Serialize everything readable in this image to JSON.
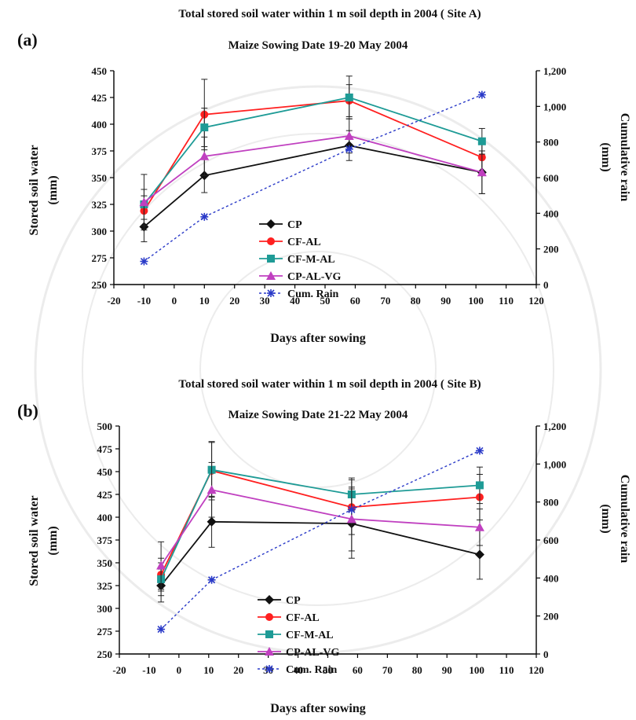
{
  "colors": {
    "CP": "#111111",
    "CF-AL": "#ff2020",
    "CF-M-AL": "#1e9b96",
    "CP-AL-VG": "#c040c0",
    "Cum. Rain": "#2a3ac8"
  },
  "chart_data": [
    {
      "type": "line",
      "panel_label": "(a)",
      "title": "Total stored soil water within 1  m soil depth in 2004  ( Site  A)",
      "subtitle": "Maize Sowing Date  19-20  May  2004",
      "xlabel": "Days after sowing",
      "ylabel_left": [
        "Stored soil water",
        "(mm)"
      ],
      "ylabel_right": [
        "Cumulative rain",
        "(mm)"
      ],
      "xlim": [
        -20,
        120
      ],
      "ylim_left": [
        250,
        450
      ],
      "ylim_right": [
        0,
        1200
      ],
      "x_ticks": [
        "-20",
        "-10",
        "0",
        "10",
        "20",
        "30",
        "40",
        "50",
        "60",
        "70",
        "80",
        "90",
        "100",
        "110",
        "120"
      ],
      "y_left_ticks": [
        "250",
        "275",
        "300",
        "325",
        "350",
        "375",
        "400",
        "425",
        "450"
      ],
      "y_right_ticks": [
        "0",
        "200",
        "400",
        "600",
        "800",
        "1,000",
        "1,200"
      ],
      "legend": [
        "CP",
        "CF-AL",
        "CF-M-AL",
        "CP-AL-VG",
        "Cum. Rain"
      ],
      "x": [
        -10,
        10,
        58,
        102
      ],
      "series": [
        {
          "name": "CP",
          "axis": "left",
          "marker": "diamond",
          "values": [
            304,
            352,
            380,
            355
          ],
          "errors": [
            14,
            16,
            14,
            20
          ]
        },
        {
          "name": "CF-AL",
          "axis": "left",
          "marker": "circle",
          "values": [
            319,
            409,
            422,
            369
          ],
          "errors": [
            14,
            33,
            15,
            15
          ]
        },
        {
          "name": "CF-M-AL",
          "axis": "left",
          "marker": "square",
          "values": [
            325,
            397,
            425,
            384
          ],
          "errors": [
            14,
            18,
            20,
            12
          ]
        },
        {
          "name": "CP-AL-VG",
          "axis": "left",
          "marker": "triangle",
          "values": [
            327,
            370,
            389,
            355
          ],
          "errors": [
            26,
            18,
            16,
            20
          ]
        },
        {
          "name": "Cum. Rain",
          "axis": "right",
          "marker": "asterisk",
          "dashed": true,
          "values": [
            130,
            380,
            760,
            1065
          ],
          "errors": [
            0,
            0,
            0,
            0
          ]
        }
      ]
    },
    {
      "type": "line",
      "panel_label": "(b)",
      "title": "Total stored soil water within 1  m soil depth in 2004  ( Site  B)",
      "subtitle": "Maize Sowing Date  21-22  May  2004",
      "xlabel": "Days after sowing",
      "ylabel_left": [
        "Stored soil water",
        "(mm)"
      ],
      "ylabel_right": [
        "Cumulative rain",
        "(mm)"
      ],
      "xlim": [
        -20,
        120
      ],
      "ylim_left": [
        250,
        500
      ],
      "ylim_right": [
        0,
        1200
      ],
      "x_ticks": [
        "-20",
        "-10",
        "0",
        "10",
        "20",
        "30",
        "40",
        "50",
        "60",
        "70",
        "80",
        "90",
        "100",
        "110",
        "120"
      ],
      "y_left_ticks": [
        "250",
        "275",
        "300",
        "325",
        "350",
        "375",
        "400",
        "425",
        "450",
        "475",
        "500"
      ],
      "y_right_ticks": [
        "0",
        "200",
        "400",
        "600",
        "800",
        "1,000",
        "1,200"
      ],
      "legend": [
        "CP",
        "CF-AL",
        "CF-M-AL",
        "CP-AL-VG",
        "Cum. Rain"
      ],
      "x": [
        -6,
        11,
        58,
        101
      ],
      "series": [
        {
          "name": "CP",
          "axis": "left",
          "marker": "diamond",
          "values": [
            325,
            395,
            393,
            359
          ],
          "errors": [
            18,
            28,
            38,
            27
          ]
        },
        {
          "name": "CF-AL",
          "axis": "left",
          "marker": "circle",
          "values": [
            337,
            451,
            411,
            422
          ],
          "errors": [
            18,
            32,
            30,
            25
          ]
        },
        {
          "name": "CF-M-AL",
          "axis": "left",
          "marker": "square",
          "values": [
            332,
            452,
            425,
            435
          ],
          "errors": [
            18,
            30,
            18,
            20
          ]
        },
        {
          "name": "CP-AL-VG",
          "axis": "left",
          "marker": "triangle",
          "values": [
            347,
            430,
            398,
            389
          ],
          "errors": [
            26,
            30,
            35,
            20
          ]
        },
        {
          "name": "Cum. Rain",
          "axis": "right",
          "marker": "asterisk",
          "dashed": true,
          "values": [
            130,
            390,
            760,
            1070
          ],
          "errors": [
            0,
            0,
            0,
            0
          ]
        }
      ]
    }
  ]
}
